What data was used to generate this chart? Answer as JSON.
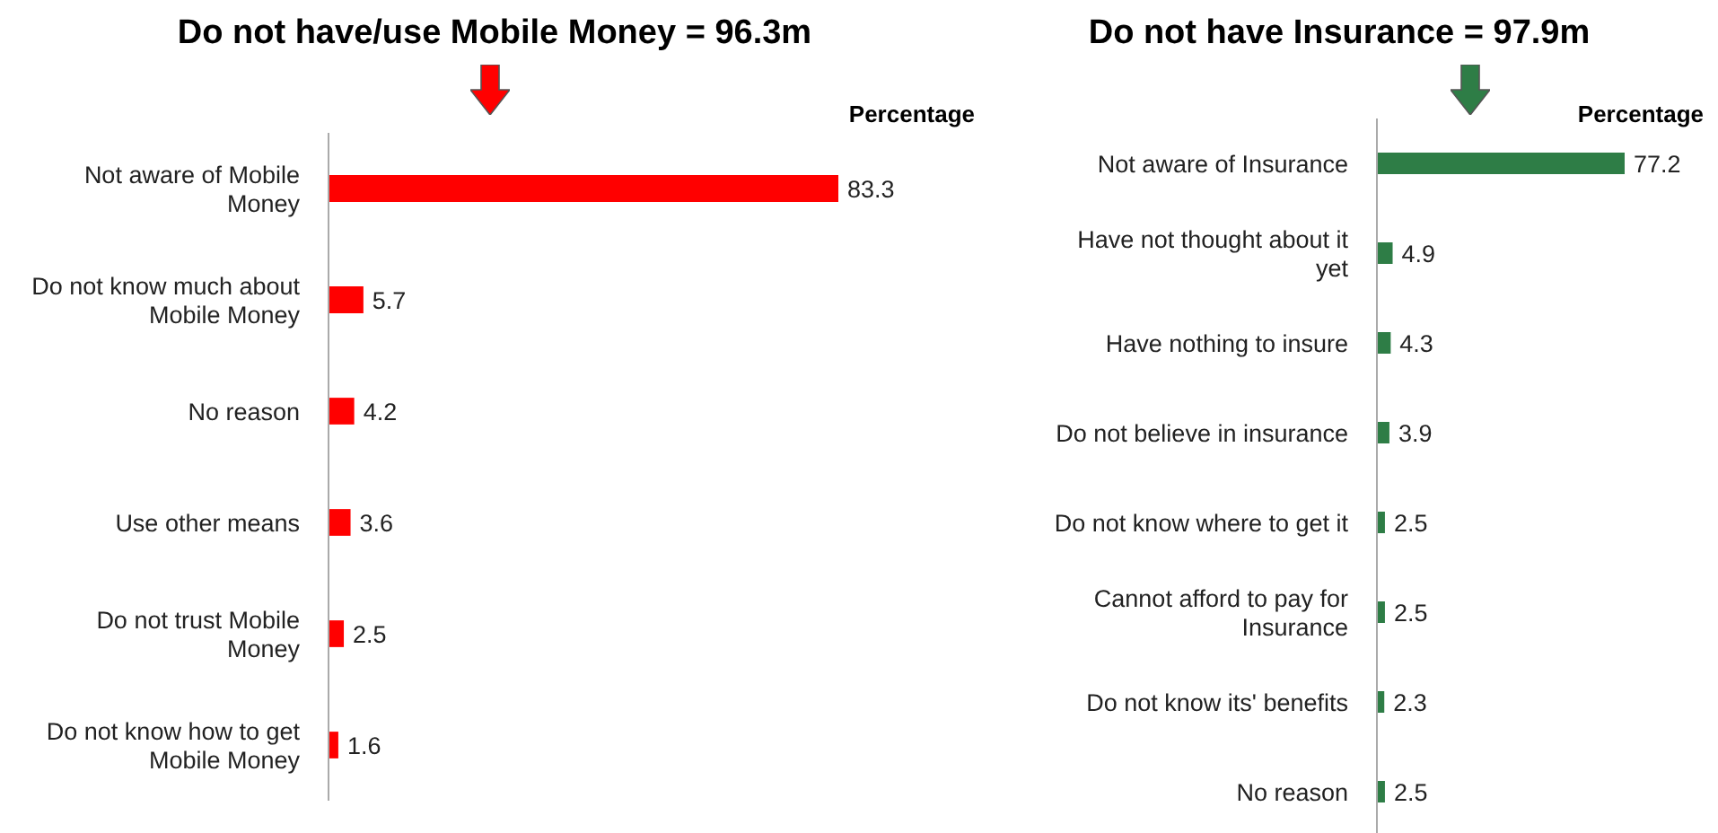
{
  "chart_data": [
    {
      "type": "bar",
      "orientation": "horizontal",
      "title": "Do not have/use Mobile Money = 96.3m",
      "xlabel": "Percentage",
      "categories": [
        "Not aware of Mobile Money",
        "Do not know much about Mobile Money",
        "No reason",
        "Use other means",
        "Do not trust Mobile Money",
        "Do not know how to get Mobile Money"
      ],
      "values": [
        83.3,
        5.7,
        4.2,
        3.6,
        2.5,
        1.6
      ],
      "color": "#ff0000",
      "data_labels": true
    },
    {
      "type": "bar",
      "orientation": "horizontal",
      "title": "Do not have Insurance = 97.9m",
      "xlabel": "Percentage",
      "categories": [
        "Not aware of Insurance",
        "Have not thought about it yet",
        "Have nothing to insure",
        "Do not believe in insurance",
        "Do not know where to get it",
        "Cannot afford to pay for Insurance",
        "Do not know its' benefits",
        "No reason"
      ],
      "values": [
        77.2,
        4.9,
        4.3,
        3.9,
        2.5,
        2.5,
        2.3,
        2.5
      ],
      "color": "#2e7d46",
      "data_labels": true
    }
  ]
}
